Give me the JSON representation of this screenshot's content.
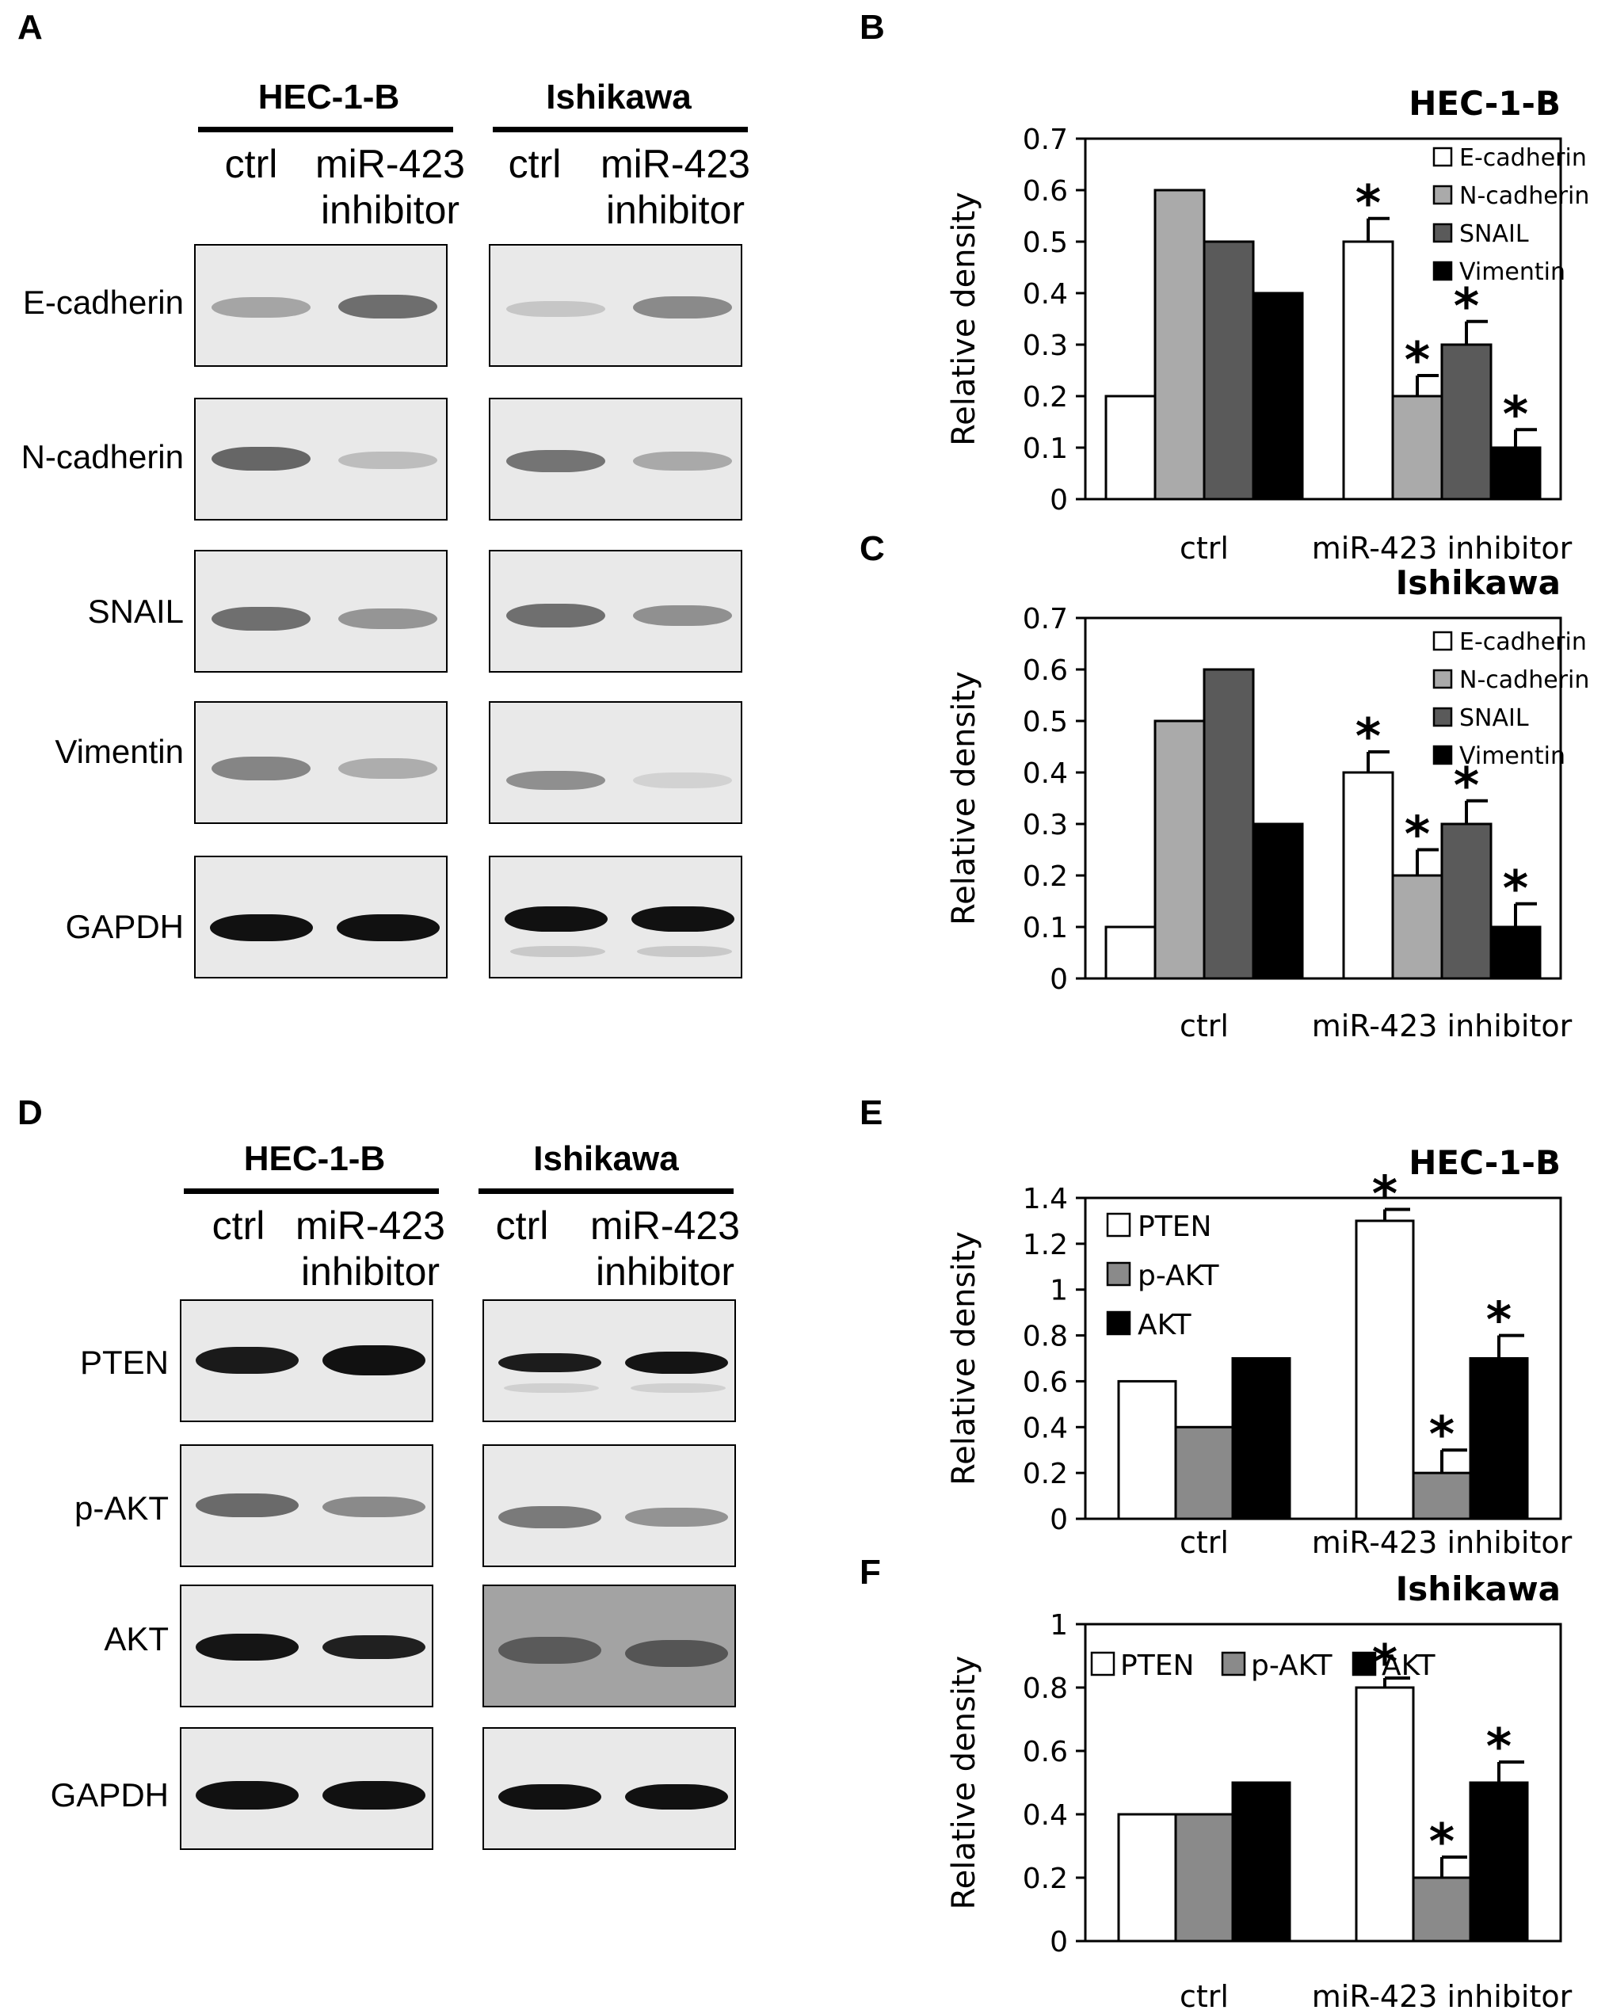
{
  "blot_A": {
    "panel": "A",
    "cell_lines": [
      "HEC-1-B",
      "Ishikawa"
    ],
    "lanes": {
      "ctrl": "ctrl",
      "inhibitor_line1": "miR-423",
      "inhibitor_line2": "inhibitor"
    },
    "rows": [
      "E-cadherin",
      "N-cadherin",
      "SNAIL",
      "Vimentin",
      "GAPDH"
    ]
  },
  "blot_D": {
    "panel": "D",
    "cell_lines": [
      "HEC-1-B",
      "Ishikawa"
    ],
    "lanes": {
      "ctrl": "ctrl",
      "inhibitor_line1": "miR-423",
      "inhibitor_line2": "inhibitor"
    },
    "rows": [
      "PTEN",
      "p-AKT",
      "AKT",
      "GAPDH"
    ]
  },
  "chart_data": [
    {
      "panel": "B",
      "type": "bar",
      "title": "HEC-1-B",
      "ylabel": "Relative density",
      "categories": [
        "ctrl",
        "miR-423 inhibitor"
      ],
      "ylim": [
        0,
        0.7
      ],
      "yticks": [
        "0",
        "0.1",
        "0.2",
        "0.3",
        "0.4",
        "0.5",
        "0.6",
        "0.7"
      ],
      "legend_position": "top-right",
      "series": [
        {
          "name": "E-cadherin",
          "color": "#ffffff",
          "values": [
            0.2,
            0.5
          ],
          "errors": [
            0,
            0.045
          ],
          "sig": [
            "",
            "*"
          ]
        },
        {
          "name": "N-cadherin",
          "color": "#aaaaaa",
          "values": [
            0.6,
            0.2
          ],
          "errors": [
            0,
            0.04
          ],
          "sig": [
            "",
            "*"
          ]
        },
        {
          "name": "SNAIL",
          "color": "#5a5a5a",
          "values": [
            0.5,
            0.3
          ],
          "errors": [
            0,
            0.045
          ],
          "sig": [
            "",
            "*"
          ]
        },
        {
          "name": "Vimentin",
          "color": "#000000",
          "values": [
            0.4,
            0.1
          ],
          "errors": [
            0,
            0.035
          ],
          "sig": [
            "",
            "*"
          ]
        }
      ]
    },
    {
      "panel": "C",
      "type": "bar",
      "title": "Ishikawa",
      "ylabel": "Relative density",
      "categories": [
        "ctrl",
        "miR-423 inhibitor"
      ],
      "ylim": [
        0,
        0.7
      ],
      "yticks": [
        "0",
        "0.1",
        "0.2",
        "0.3",
        "0.4",
        "0.5",
        "0.6",
        "0.7"
      ],
      "legend_position": "top-right",
      "series": [
        {
          "name": "E-cadherin",
          "color": "#ffffff",
          "values": [
            0.1,
            0.4
          ],
          "errors": [
            0,
            0.04
          ],
          "sig": [
            "",
            "*"
          ]
        },
        {
          "name": "N-cadherin",
          "color": "#aaaaaa",
          "values": [
            0.5,
            0.2
          ],
          "errors": [
            0,
            0.05
          ],
          "sig": [
            "",
            "*"
          ]
        },
        {
          "name": "SNAIL",
          "color": "#5a5a5a",
          "values": [
            0.6,
            0.3
          ],
          "errors": [
            0,
            0.045
          ],
          "sig": [
            "",
            "*"
          ]
        },
        {
          "name": "Vimentin",
          "color": "#000000",
          "values": [
            0.3,
            0.1
          ],
          "errors": [
            0,
            0.045
          ],
          "sig": [
            "",
            "*"
          ]
        }
      ]
    },
    {
      "panel": "E",
      "type": "bar",
      "title": "HEC-1-B",
      "ylabel": "Relative density",
      "categories": [
        "ctrl",
        "miR-423 inhibitor"
      ],
      "ylim": [
        0,
        1.4
      ],
      "yticks": [
        "0",
        "0.2",
        "0.4",
        "0.6",
        "0.8",
        "1",
        "1.2",
        "1.4"
      ],
      "legend_position": "top-left",
      "series": [
        {
          "name": "PTEN",
          "color": "#ffffff",
          "values": [
            0.6,
            1.3
          ],
          "errors": [
            0,
            0.05
          ],
          "sig": [
            "",
            "*"
          ]
        },
        {
          "name": "p-AKT",
          "color": "#8a8a8a",
          "values": [
            0.4,
            0.2
          ],
          "errors": [
            0,
            0.1
          ],
          "sig": [
            "",
            "*"
          ]
        },
        {
          "name": "AKT",
          "color": "#000000",
          "values": [
            0.7,
            0.7
          ],
          "errors": [
            0,
            0.1
          ],
          "sig": [
            "",
            "*"
          ]
        }
      ]
    },
    {
      "panel": "F",
      "type": "bar",
      "title": "Ishikawa",
      "ylabel": "Relative density",
      "categories": [
        "ctrl",
        "miR-423 inhibitor"
      ],
      "ylim": [
        0,
        1
      ],
      "yticks": [
        "0",
        "0.2",
        "0.4",
        "0.6",
        "0.8",
        "1"
      ],
      "legend_position": "top-left",
      "series": [
        {
          "name": "PTEN",
          "color": "#ffffff",
          "values": [
            0.4,
            0.8
          ],
          "errors": [
            0,
            0.03
          ],
          "sig": [
            "",
            "*"
          ]
        },
        {
          "name": "p-AKT",
          "color": "#8a8a8a",
          "values": [
            0.4,
            0.2
          ],
          "errors": [
            0,
            0.065
          ],
          "sig": [
            "",
            "*"
          ]
        },
        {
          "name": "AKT",
          "color": "#000000",
          "values": [
            0.5,
            0.5
          ],
          "errors": [
            0,
            0.065
          ],
          "sig": [
            "",
            "*"
          ]
        }
      ]
    }
  ]
}
